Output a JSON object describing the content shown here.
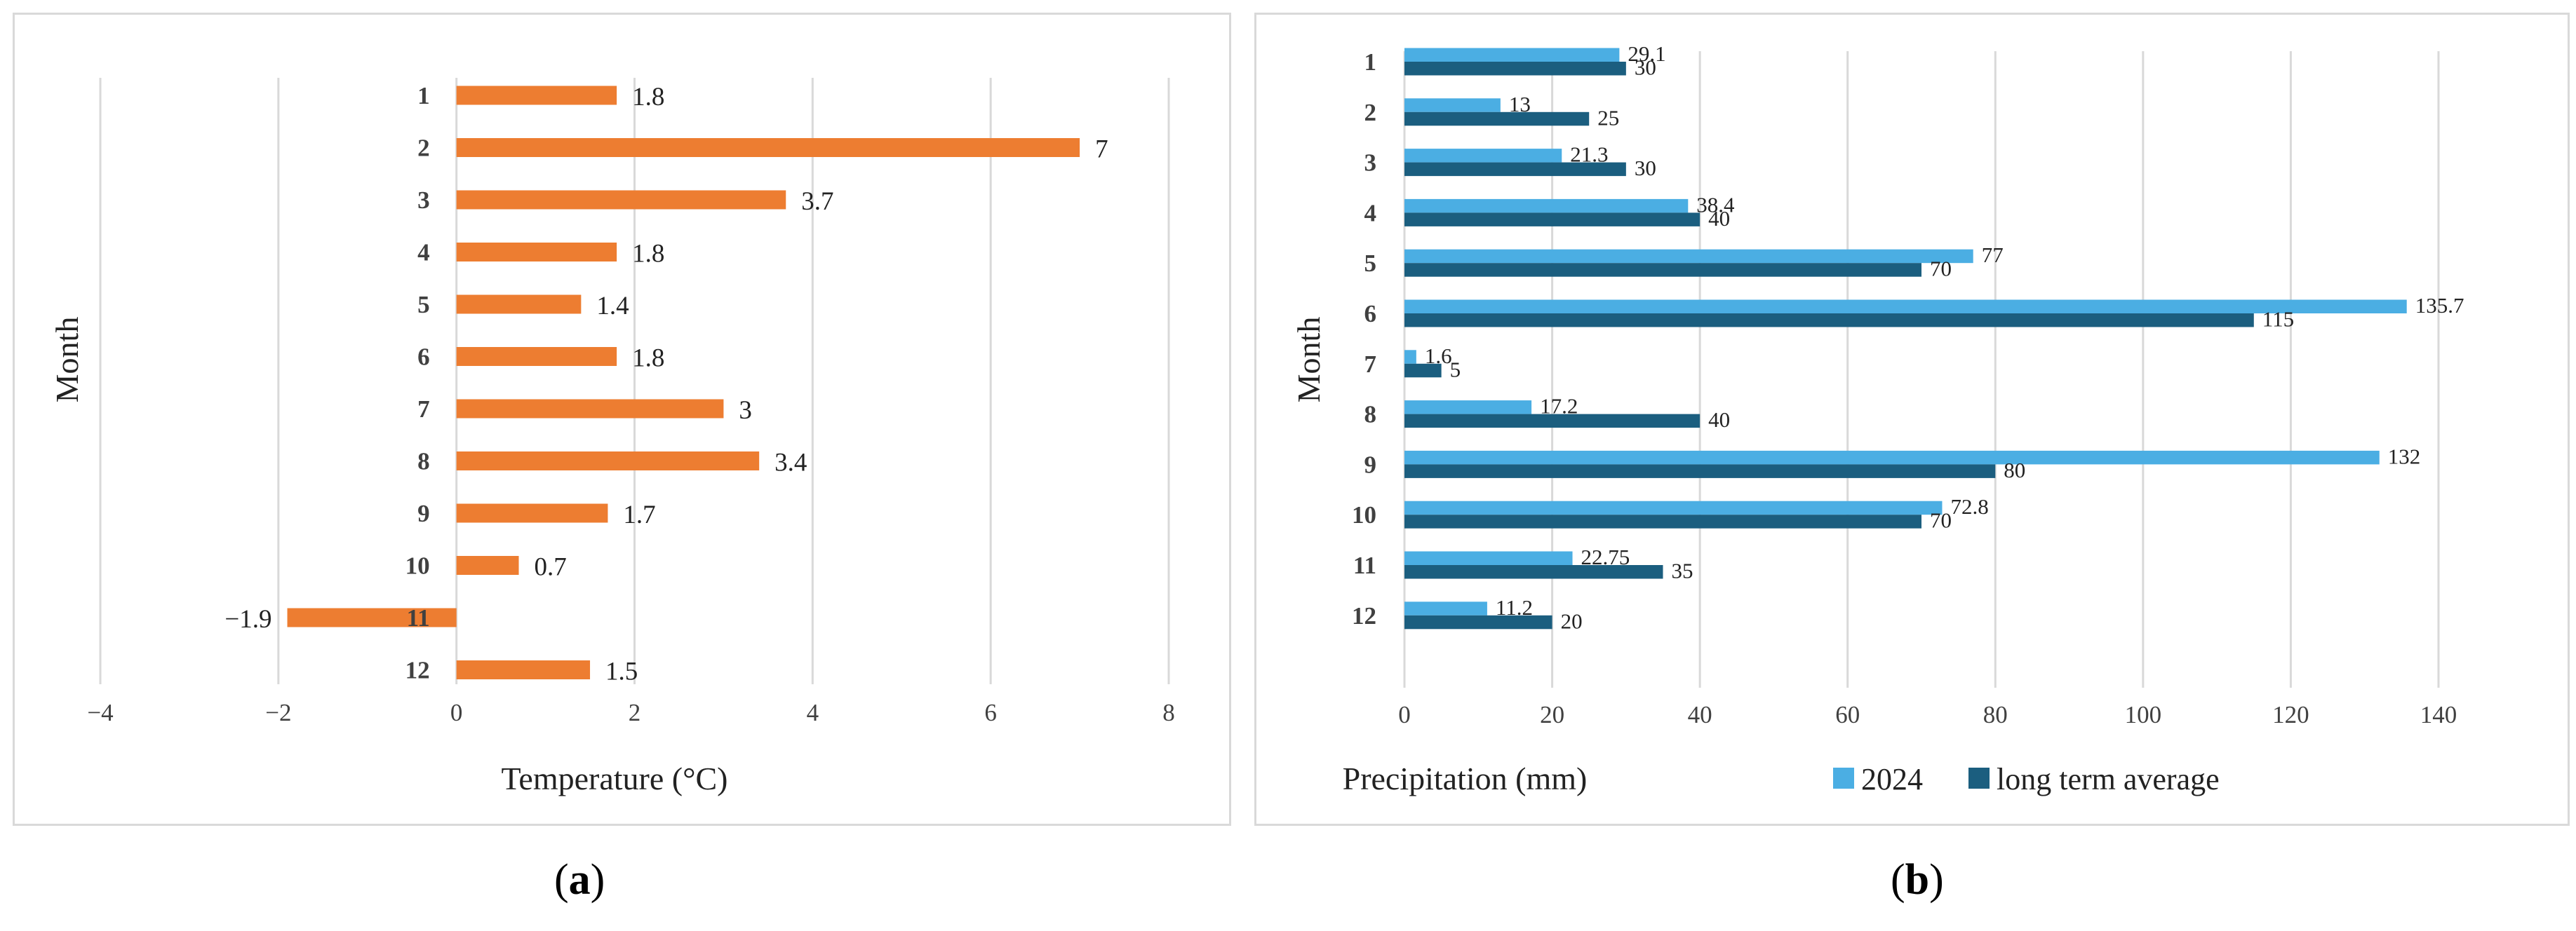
{
  "chart_data": [
    {
      "type": "bar",
      "orientation": "horizontal",
      "categories": [
        "1",
        "2",
        "3",
        "4",
        "5",
        "6",
        "7",
        "8",
        "9",
        "10",
        "11",
        "12"
      ],
      "series": [
        {
          "name": "Temperature",
          "values": [
            1.8,
            7,
            3.7,
            1.8,
            1.4,
            1.8,
            3,
            3.4,
            1.7,
            0.7,
            -1.9,
            1.5
          ]
        }
      ],
      "value_labels": [
        "1.8",
        "7",
        "3.7",
        "1.8",
        "1.4",
        "1.8",
        "3",
        "3.4",
        "1.7",
        "0.7",
        "−1.9",
        "1.5"
      ],
      "xlabel": "Temperature (°C)",
      "ylabel": "Month",
      "xlim": [
        -4,
        8
      ],
      "xticks": [
        -4,
        -2,
        0,
        2,
        4,
        6,
        8
      ],
      "xtick_labels": [
        "−4",
        "−2",
        "0",
        "2",
        "4",
        "6",
        "8"
      ],
      "grid": "vertical",
      "colors": {
        "bar": "#ED7D31",
        "grid": "#d9d9d9"
      }
    },
    {
      "type": "bar",
      "orientation": "horizontal",
      "categories": [
        "1",
        "2",
        "3",
        "4",
        "5",
        "6",
        "7",
        "8",
        "9",
        "10",
        "11",
        "12"
      ],
      "series": [
        {
          "name": "2024",
          "values": [
            29.1,
            13,
            21.3,
            38.4,
            77,
            135.7,
            1.6,
            17.2,
            132,
            72.8,
            22.75,
            11.2
          ],
          "color": "#4BAEE3"
        },
        {
          "name": "long term average",
          "values": [
            30,
            25,
            30,
            40,
            70,
            115,
            5,
            40,
            80,
            70,
            35,
            20
          ],
          "color": "#1B5E7F"
        }
      ],
      "series_labels": [
        [
          "29.1",
          "13",
          "21.3",
          "38.4",
          "77",
          "135.7",
          "1.6",
          "17.2",
          "132",
          "72.8",
          "22.75",
          "11.2"
        ],
        [
          "30",
          "25",
          "30",
          "40",
          "70",
          "115",
          "5",
          "40",
          "80",
          "70",
          "35",
          "20"
        ]
      ],
      "xlabel": "Precipitation (mm)",
      "ylabel": "Month",
      "xlim": [
        0,
        140
      ],
      "xticks": [
        0,
        20,
        40,
        60,
        80,
        100,
        120,
        140
      ],
      "xtick_labels": [
        "0",
        "20",
        "40",
        "60",
        "80",
        "100",
        "120",
        "140"
      ],
      "legend": "bottom-right",
      "legend_labels": [
        "2024",
        "long term average"
      ],
      "grid": "vertical",
      "colors": {
        "grid": "#d9d9d9"
      }
    }
  ],
  "captions": {
    "a": {
      "open": "(",
      "letter": "a",
      "close": ")"
    },
    "b": {
      "open": "(",
      "letter": "b",
      "close": ")"
    }
  }
}
